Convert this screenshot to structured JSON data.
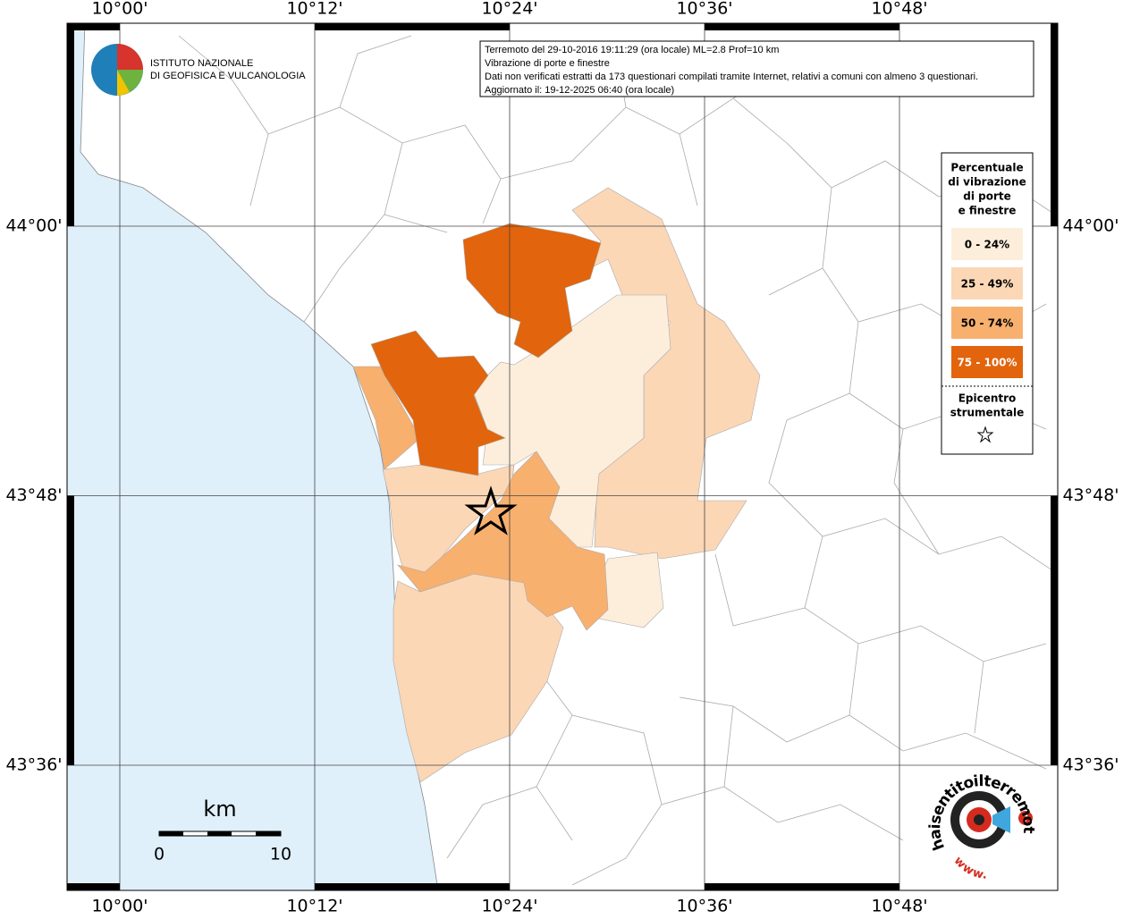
{
  "header": {
    "logo_line1": "ISTITUTO NAZIONALE",
    "logo_line2": "DI GEOFISICA E VULCANOLOGIA"
  },
  "info": {
    "lines": [
      "Terremoto del 29-10-2016 19:11:29 (ora locale) ML=2.8 Prof=10 km",
      "Vibrazione di porte e finestre",
      "Dati non verificati estratti da 173 questionari compilati tramite Internet, relativi a comuni con almeno 3 questionari.",
      "Aggiornato il: 19-12-2025 06:40 (ora locale)"
    ]
  },
  "axes": {
    "longitude_labels": [
      "10°00'",
      "10°12'",
      "10°24'",
      "10°36'",
      "10°48'"
    ],
    "latitude_labels": [
      "44°00'",
      "43°48'",
      "43°36'"
    ]
  },
  "legend": {
    "title_lines": [
      "Percentuale",
      "di vibrazione",
      "di porte",
      "e finestre"
    ],
    "classes": [
      {
        "label": "0 - 24%",
        "color": "#fdeedc"
      },
      {
        "label": "25 - 49%",
        "color": "#fbd7b6"
      },
      {
        "label": "50 - 74%",
        "color": "#f8b06f"
      },
      {
        "label": "75 - 100%",
        "color": "#e2640c"
      }
    ],
    "epicenter_lines": [
      "Epicentro",
      "strumentale"
    ]
  },
  "scale_bar": {
    "unit": "km",
    "labels": [
      "0",
      "10"
    ]
  },
  "watermark": {
    "text": "haisentitoilterremoto.it",
    "url_prefix": "www.",
    "symbol": "?"
  }
}
